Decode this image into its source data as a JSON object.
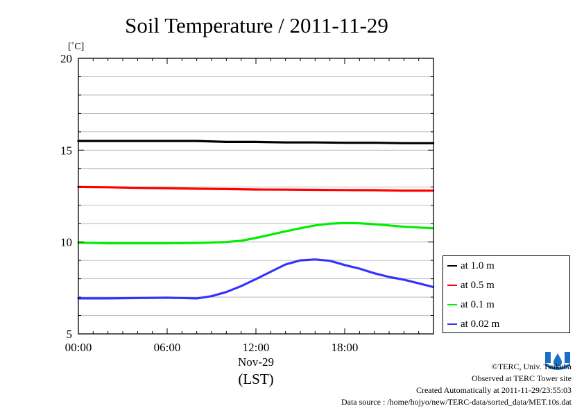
{
  "chart_data": {
    "type": "line",
    "title": "Soil Temperature / 2011-11-29",
    "ylabel": "[˚C]",
    "xlabel": "(LST)",
    "date_label": "Nov-29",
    "x_ticks": [
      "00:00",
      "06:00",
      "12:00",
      "18:00"
    ],
    "y_ticks": [
      5,
      10,
      15,
      20
    ],
    "xlim": [
      "00:00",
      "23:59"
    ],
    "ylim": [
      5,
      20
    ],
    "grid": true,
    "legend_position": "right",
    "series": [
      {
        "name": "at 1.0 m",
        "color": "#000000",
        "x": [
          "00:00",
          "02:00",
          "04:00",
          "06:00",
          "08:00",
          "10:00",
          "12:00",
          "14:00",
          "16:00",
          "18:00",
          "20:00",
          "22:00",
          "23:59"
        ],
        "values": [
          15.5,
          15.5,
          15.5,
          15.5,
          15.5,
          15.45,
          15.45,
          15.42,
          15.42,
          15.4,
          15.4,
          15.38,
          15.38
        ]
      },
      {
        "name": "at 0.5 m",
        "color": "#ff0000",
        "x": [
          "00:00",
          "02:00",
          "04:00",
          "06:00",
          "08:00",
          "10:00",
          "12:00",
          "14:00",
          "16:00",
          "18:00",
          "20:00",
          "22:00",
          "23:59"
        ],
        "values": [
          13.0,
          12.98,
          12.95,
          12.93,
          12.9,
          12.88,
          12.86,
          12.85,
          12.84,
          12.83,
          12.82,
          12.8,
          12.8
        ]
      },
      {
        "name": "at 0.1 m",
        "color": "#00ee00",
        "x": [
          "00:00",
          "02:00",
          "04:00",
          "06:00",
          "08:00",
          "10:00",
          "11:00",
          "12:00",
          "13:00",
          "14:00",
          "15:00",
          "16:00",
          "17:00",
          "18:00",
          "19:00",
          "20:00",
          "21:00",
          "22:00",
          "23:59"
        ],
        "values": [
          9.97,
          9.93,
          9.93,
          9.93,
          9.95,
          10.0,
          10.07,
          10.22,
          10.4,
          10.58,
          10.75,
          10.9,
          11.0,
          11.03,
          11.02,
          10.97,
          10.9,
          10.83,
          10.75
        ]
      },
      {
        "name": "at 0.02 m",
        "color": "#3333ff",
        "x": [
          "00:00",
          "02:00",
          "04:00",
          "06:00",
          "08:00",
          "09:00",
          "10:00",
          "11:00",
          "12:00",
          "13:00",
          "14:00",
          "15:00",
          "16:00",
          "17:00",
          "18:00",
          "19:00",
          "20:00",
          "21:00",
          "22:00",
          "23:00",
          "23:59"
        ],
        "values": [
          6.93,
          6.93,
          6.95,
          6.97,
          6.93,
          7.05,
          7.28,
          7.6,
          7.98,
          8.38,
          8.78,
          9.0,
          9.05,
          8.98,
          8.75,
          8.55,
          8.3,
          8.1,
          7.95,
          7.75,
          7.55
        ]
      }
    ]
  },
  "footer": {
    "copyright": "©TERC, Univ. Tsukuba",
    "observed": "Observed at TERC Tower site",
    "created": "Created Automatically at 2011-11-29/23:55:03",
    "source": "Data source : /home/hojyo/new/TERC-data/sorted_data/MET.10s.dat"
  },
  "logo": {
    "text": "TERC",
    "color": "#1a6fc4"
  }
}
